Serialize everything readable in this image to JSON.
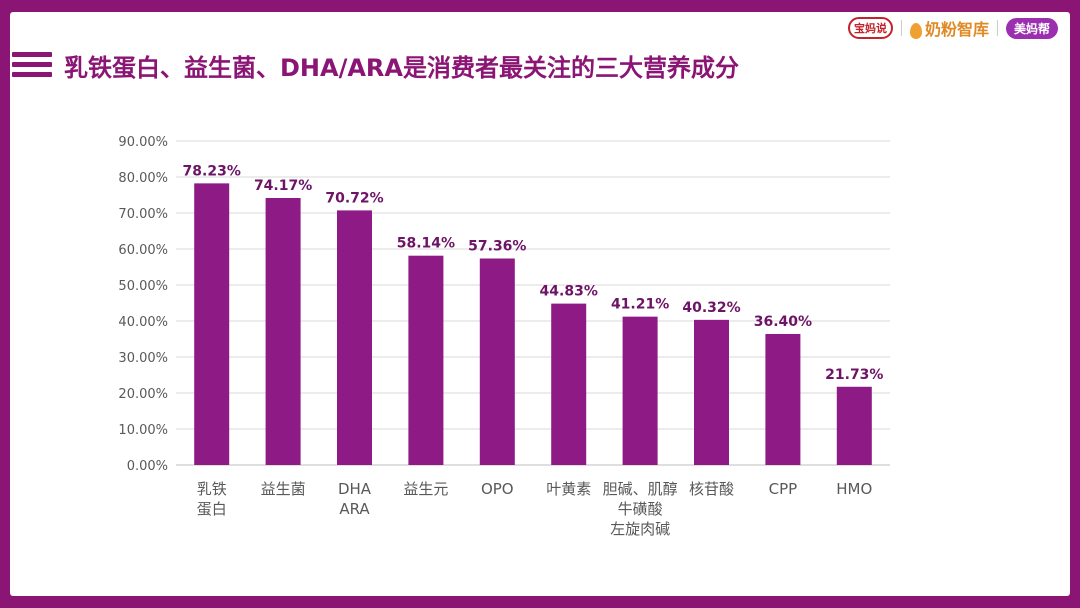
{
  "header": {
    "title": "乳铁蛋白、益生菌、DHA/ARA是消费者最关注的三大营养成分",
    "logos": [
      "宝妈说",
      "奶粉智库",
      "美妈帮"
    ]
  },
  "colors": {
    "accent": "#8a1574",
    "bar": "#8e1a86",
    "grid": "#d9d9d9"
  },
  "chart_data": {
    "type": "bar",
    "title": "乳铁蛋白、益生菌、DHA/ARA是消费者最关注的三大营养成分",
    "categories": [
      [
        "乳铁",
        "蛋白"
      ],
      [
        "益生菌"
      ],
      [
        "DHA",
        "ARA"
      ],
      [
        "益生元"
      ],
      [
        "OPO"
      ],
      [
        "叶黄素"
      ],
      [
        "胆碱、肌醇",
        "牛磺酸",
        "左旋肉碱"
      ],
      [
        "核苷酸"
      ],
      [
        "CPP"
      ],
      [
        "HMO"
      ]
    ],
    "values": [
      78.23,
      74.17,
      70.72,
      58.14,
      57.36,
      44.83,
      41.21,
      40.32,
      36.4,
      21.73
    ],
    "data_labels": [
      "78.23%",
      "74.17%",
      "70.72%",
      "58.14%",
      "57.36%",
      "44.83%",
      "41.21%",
      "40.32%",
      "36.40%",
      "21.73%"
    ],
    "yticks": [
      "0.00%",
      "10.00%",
      "20.00%",
      "30.00%",
      "40.00%",
      "50.00%",
      "60.00%",
      "70.00%",
      "80.00%",
      "90.00%"
    ],
    "ylim": [
      0,
      90
    ],
    "xlabel": "",
    "ylabel": "",
    "grid": true
  }
}
